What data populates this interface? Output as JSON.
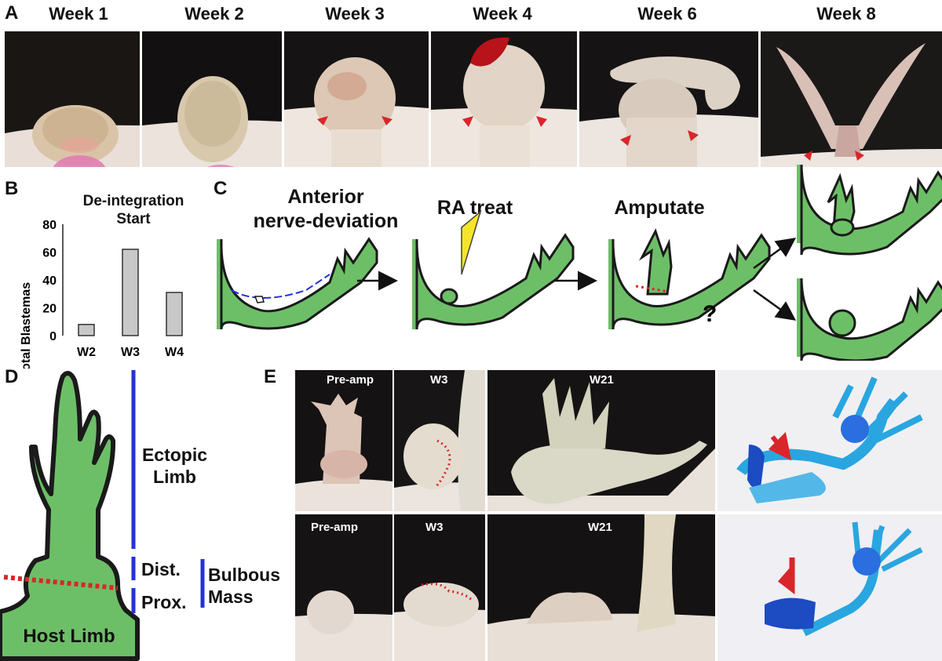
{
  "panels": {
    "a": "A",
    "b": "B",
    "c": "C",
    "d": "D",
    "e": "E"
  },
  "weeks": [
    "Week 1",
    "Week 2",
    "Week 3",
    "Week 4",
    "Week 6",
    "Week 8"
  ],
  "chart": {
    "title_line1": "De-integration",
    "title_line2": "Start",
    "ylabel": "% Total Blastemas",
    "yticks": [
      "80",
      "60",
      "40",
      "20",
      "0"
    ]
  },
  "chart_data": {
    "type": "bar",
    "title": "De-integration Start",
    "ylabel": "% Total Blastemas",
    "categories": [
      "W2",
      "W3",
      "W4"
    ],
    "values": [
      8,
      62,
      31
    ],
    "ylim": [
      0,
      80
    ]
  },
  "schematic": {
    "step1_line1": "Anterior",
    "step1_line2": "nerve-deviation",
    "step2": "RA treat",
    "step3": "Amputate",
    "question": "?"
  },
  "diagram_d": {
    "ectopic_line1": "Ectopic",
    "ectopic_line2": "Limb",
    "dist": "Dist.",
    "prox": "Prox.",
    "bulbous_line1": "Bulbous",
    "bulbous_line2": "Mass",
    "host": "Host Limb"
  },
  "panel_e": {
    "row1": [
      "Pre-amp",
      "W3",
      "W21"
    ],
    "row2": [
      "Pre-amp",
      "W3",
      "W21"
    ]
  },
  "colors": {
    "green": "#6dbf67",
    "outline": "#1a1a1a",
    "red": "#d9262b",
    "blue": "#2632d6",
    "yellow": "#f5e52a"
  }
}
